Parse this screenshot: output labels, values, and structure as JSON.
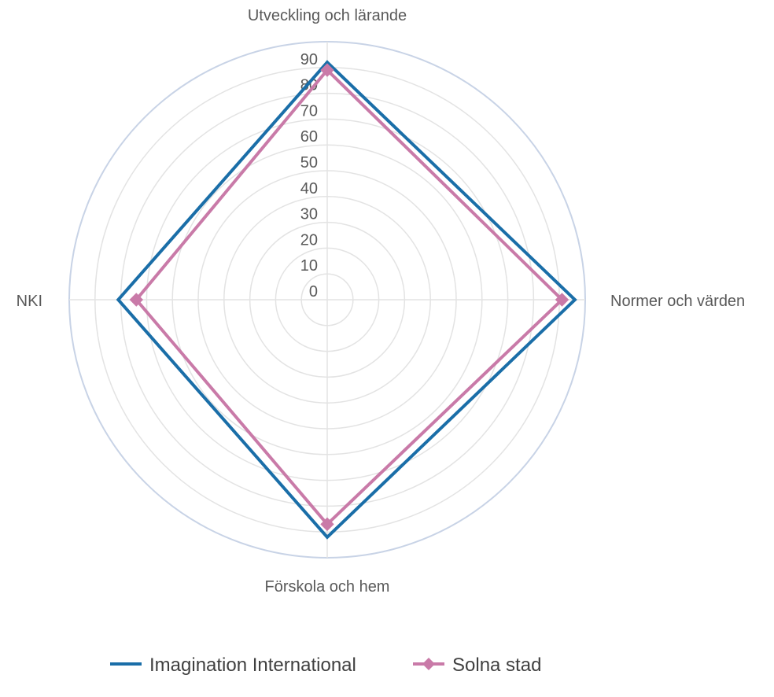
{
  "chart_data": {
    "type": "radar",
    "axes": [
      "Utveckling och lärande",
      "Normer och värden",
      "Förskola och hem",
      "NKI"
    ],
    "rlim": [
      0,
      100
    ],
    "ticks": [
      0,
      10,
      20,
      30,
      40,
      50,
      60,
      70,
      80,
      90
    ],
    "grid": true,
    "legend": "bottom",
    "series": [
      {
        "name": "Imagination International",
        "values": [
          92,
          96,
          92,
          81
        ],
        "color": "#1a6ea8",
        "marker": "none"
      },
      {
        "name": "Solna stad",
        "values": [
          89,
          91,
          87,
          74
        ],
        "color": "#c97aa8",
        "marker": "diamond"
      }
    ]
  }
}
